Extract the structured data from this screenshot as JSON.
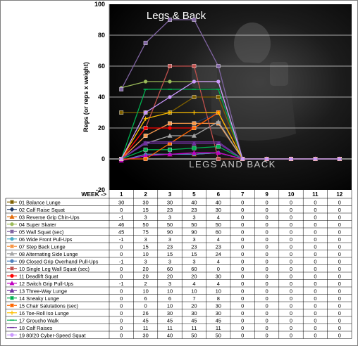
{
  "chart_data": {
    "type": "line",
    "title": "Legs & Back",
    "ylabel": "Reps (or reps x weight)",
    "xlabel": "WEEK ->",
    "ylim": [
      -20,
      100
    ],
    "yticks": [
      -20,
      0,
      20,
      40,
      60,
      80,
      100
    ],
    "grid": true,
    "legend": "table-bottom",
    "background_text": "LEGS AND BACK",
    "categories": [
      "1",
      "2",
      "3",
      "5",
      "6",
      "7",
      "9",
      "10",
      "11",
      "12"
    ],
    "series": [
      {
        "name": "01 Balance Lunge",
        "color": "#7f6000",
        "marker": "square",
        "values": [
          30,
          30,
          30,
          40,
          40,
          0,
          0,
          0,
          0,
          0
        ]
      },
      {
        "name": "02 Calf Raise Squat",
        "color": "#1f3864",
        "marker": "diamond",
        "values": [
          0,
          15,
          23,
          23,
          30,
          0,
          0,
          0,
          0,
          0
        ]
      },
      {
        "name": "03 Reverse Grip Chin-Ups",
        "color": "#e46c0a",
        "marker": "triangle",
        "values": [
          -1,
          3,
          3,
          3,
          4,
          0,
          0,
          0,
          0,
          0
        ]
      },
      {
        "name": "04 Super Skater",
        "color": "#9bbb59",
        "marker": "circle",
        "values": [
          46,
          50,
          50,
          50,
          50,
          0,
          0,
          0,
          0,
          0
        ]
      },
      {
        "name": "05 Wall Squat (sec)",
        "color": "#8064a2",
        "marker": "square",
        "values": [
          45,
          75,
          90,
          90,
          60,
          0,
          0,
          0,
          0,
          0
        ]
      },
      {
        "name": "06 Wide Front Pull-Ups",
        "color": "#4bacc6",
        "marker": "circle",
        "values": [
          -1,
          3,
          3,
          3,
          4,
          0,
          0,
          0,
          0,
          0
        ]
      },
      {
        "name": "07 Step Back Lunge",
        "color": "#f79646",
        "marker": "square",
        "values": [
          0,
          15,
          23,
          23,
          23,
          0,
          0,
          0,
          0,
          0
        ]
      },
      {
        "name": "08 Alternating Side Lunge",
        "color": "#a6a6a6",
        "marker": "triangle",
        "values": [
          0,
          10,
          15,
          15,
          24,
          0,
          0,
          0,
          0,
          0
        ]
      },
      {
        "name": "09 Closed Grip Overhand Pull-Ups",
        "color": "#4f81bd",
        "marker": "circle",
        "values": [
          -1,
          3,
          3,
          3,
          4,
          0,
          0,
          0,
          0,
          0
        ]
      },
      {
        "name": "10 Single Leg Wall Squat (sec)",
        "color": "#c0504d",
        "marker": "square",
        "values": [
          0,
          20,
          60,
          60,
          0,
          0,
          0,
          0,
          0,
          0
        ]
      },
      {
        "name": "11 Deadlift Squat",
        "color": "#ff0000",
        "marker": "circle",
        "values": [
          0,
          20,
          20,
          20,
          30,
          0,
          0,
          0,
          0,
          0
        ]
      },
      {
        "name": "12 Switch Grip Pull-Ups",
        "color": "#c000c0",
        "marker": "triangle",
        "values": [
          -1,
          2,
          3,
          4,
          4,
          0,
          0,
          0,
          0,
          0
        ]
      },
      {
        "name": "13 Three-Way Lunge",
        "color": "#7030a0",
        "marker": "triangle",
        "values": [
          0,
          10,
          10,
          10,
          10,
          0,
          0,
          0,
          0,
          0
        ]
      },
      {
        "name": "14 Sneaky Lunge",
        "color": "#00b050",
        "marker": "square",
        "values": [
          0,
          6,
          6,
          7,
          8,
          0,
          0,
          0,
          0,
          0
        ]
      },
      {
        "name": "15 Chair Salutations (sec)",
        "color": "#ff6600",
        "marker": "square",
        "values": [
          0,
          0,
          10,
          20,
          30,
          0,
          0,
          0,
          0,
          0
        ]
      },
      {
        "name": "16 Toe-Roll Iso Lunge",
        "color": "#ffc000",
        "marker": "plus",
        "values": [
          0,
          26,
          30,
          30,
          30,
          0,
          0,
          0,
          0,
          0
        ]
      },
      {
        "name": "17 Groucho Walk",
        "color": "#00b050",
        "marker": "line",
        "values": [
          0,
          45,
          45,
          45,
          45,
          0,
          0,
          0,
          0,
          0
        ]
      },
      {
        "name": "18 Calf Raises",
        "color": "#7030a0",
        "marker": "line",
        "values": [
          0,
          11,
          11,
          11,
          11,
          0,
          0,
          0,
          0,
          0
        ]
      },
      {
        "name": "19 80/20 Cyber-Speed Squat",
        "color": "#cc99ff",
        "marker": "circle",
        "values": [
          0,
          30,
          40,
          50,
          50,
          0,
          0,
          0,
          0,
          0
        ]
      }
    ]
  }
}
